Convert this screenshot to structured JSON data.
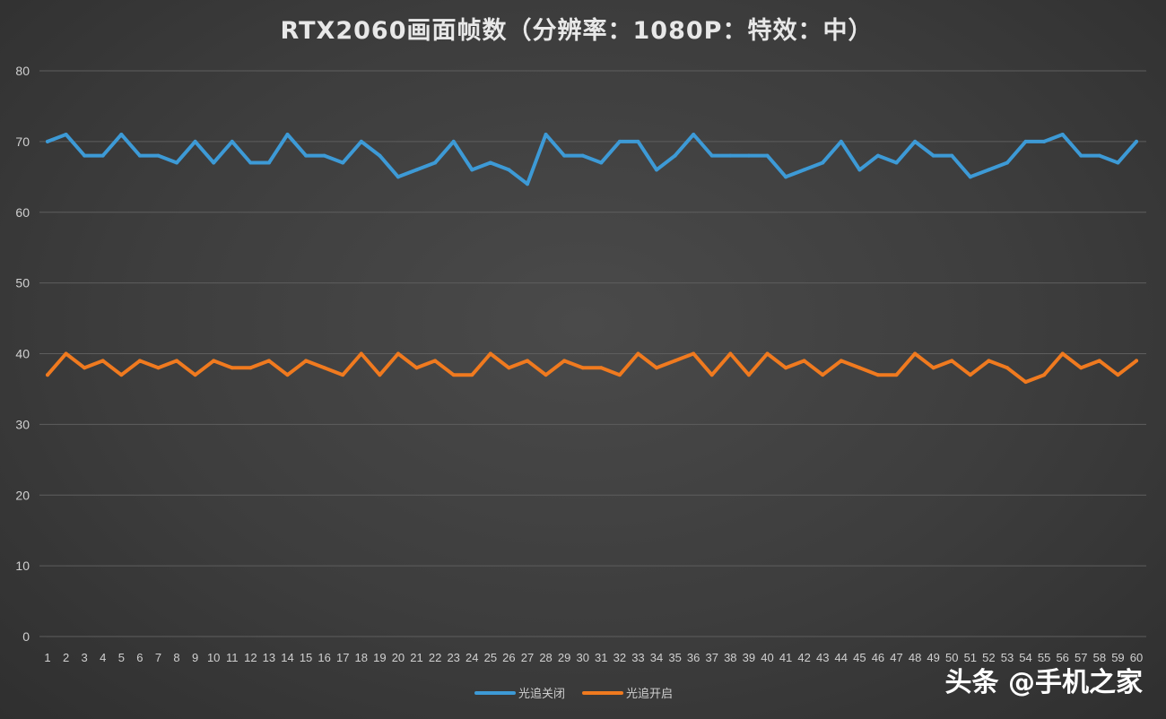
{
  "chart_data": {
    "type": "line",
    "title": "RTX2060画面帧数（分辨率：1080P：特效：中）",
    "xlabel": "",
    "ylabel": "",
    "ylim": [
      0,
      80
    ],
    "yticks": [
      0,
      10,
      20,
      30,
      40,
      50,
      60,
      70,
      80
    ],
    "grid": true,
    "legend_position": "bottom",
    "categories": [
      "1",
      "2",
      "3",
      "4",
      "5",
      "6",
      "7",
      "8",
      "9",
      "10",
      "11",
      "12",
      "13",
      "14",
      "15",
      "16",
      "17",
      "18",
      "19",
      "20",
      "21",
      "22",
      "23",
      "24",
      "25",
      "26",
      "27",
      "28",
      "29",
      "30",
      "31",
      "32",
      "33",
      "34",
      "35",
      "36",
      "37",
      "38",
      "39",
      "40",
      "41",
      "42",
      "43",
      "44",
      "45",
      "46",
      "47",
      "48",
      "49",
      "50",
      "51",
      "52",
      "53",
      "54",
      "55",
      "56",
      "57",
      "58",
      "59",
      "60"
    ],
    "series": [
      {
        "name": "光追关闭",
        "color": "#3d9ad6",
        "values": [
          70,
          71,
          68,
          68,
          71,
          68,
          68,
          67,
          70,
          67,
          70,
          67,
          67,
          71,
          68,
          68,
          67,
          70,
          68,
          65,
          66,
          67,
          70,
          66,
          67,
          66,
          64,
          71,
          68,
          68,
          67,
          70,
          70,
          66,
          68,
          71,
          68,
          68,
          68,
          68,
          65,
          66,
          67,
          70,
          66,
          68,
          67,
          70,
          68,
          68,
          65,
          66,
          67,
          70,
          70,
          71,
          68,
          68,
          67,
          70
        ]
      },
      {
        "name": "光追开启",
        "color": "#f07a1f",
        "values": [
          37,
          40,
          38,
          39,
          37,
          39,
          38,
          39,
          37,
          39,
          38,
          38,
          39,
          37,
          39,
          38,
          37,
          40,
          37,
          40,
          38,
          39,
          37,
          37,
          40,
          38,
          39,
          37,
          39,
          38,
          38,
          37,
          40,
          38,
          39,
          40,
          37,
          40,
          37,
          40,
          38,
          39,
          37,
          39,
          38,
          37,
          37,
          40,
          38,
          39,
          37,
          39,
          38,
          36,
          37,
          40,
          38,
          39,
          37,
          39
        ]
      }
    ]
  },
  "watermark": "头条 @手机之家"
}
